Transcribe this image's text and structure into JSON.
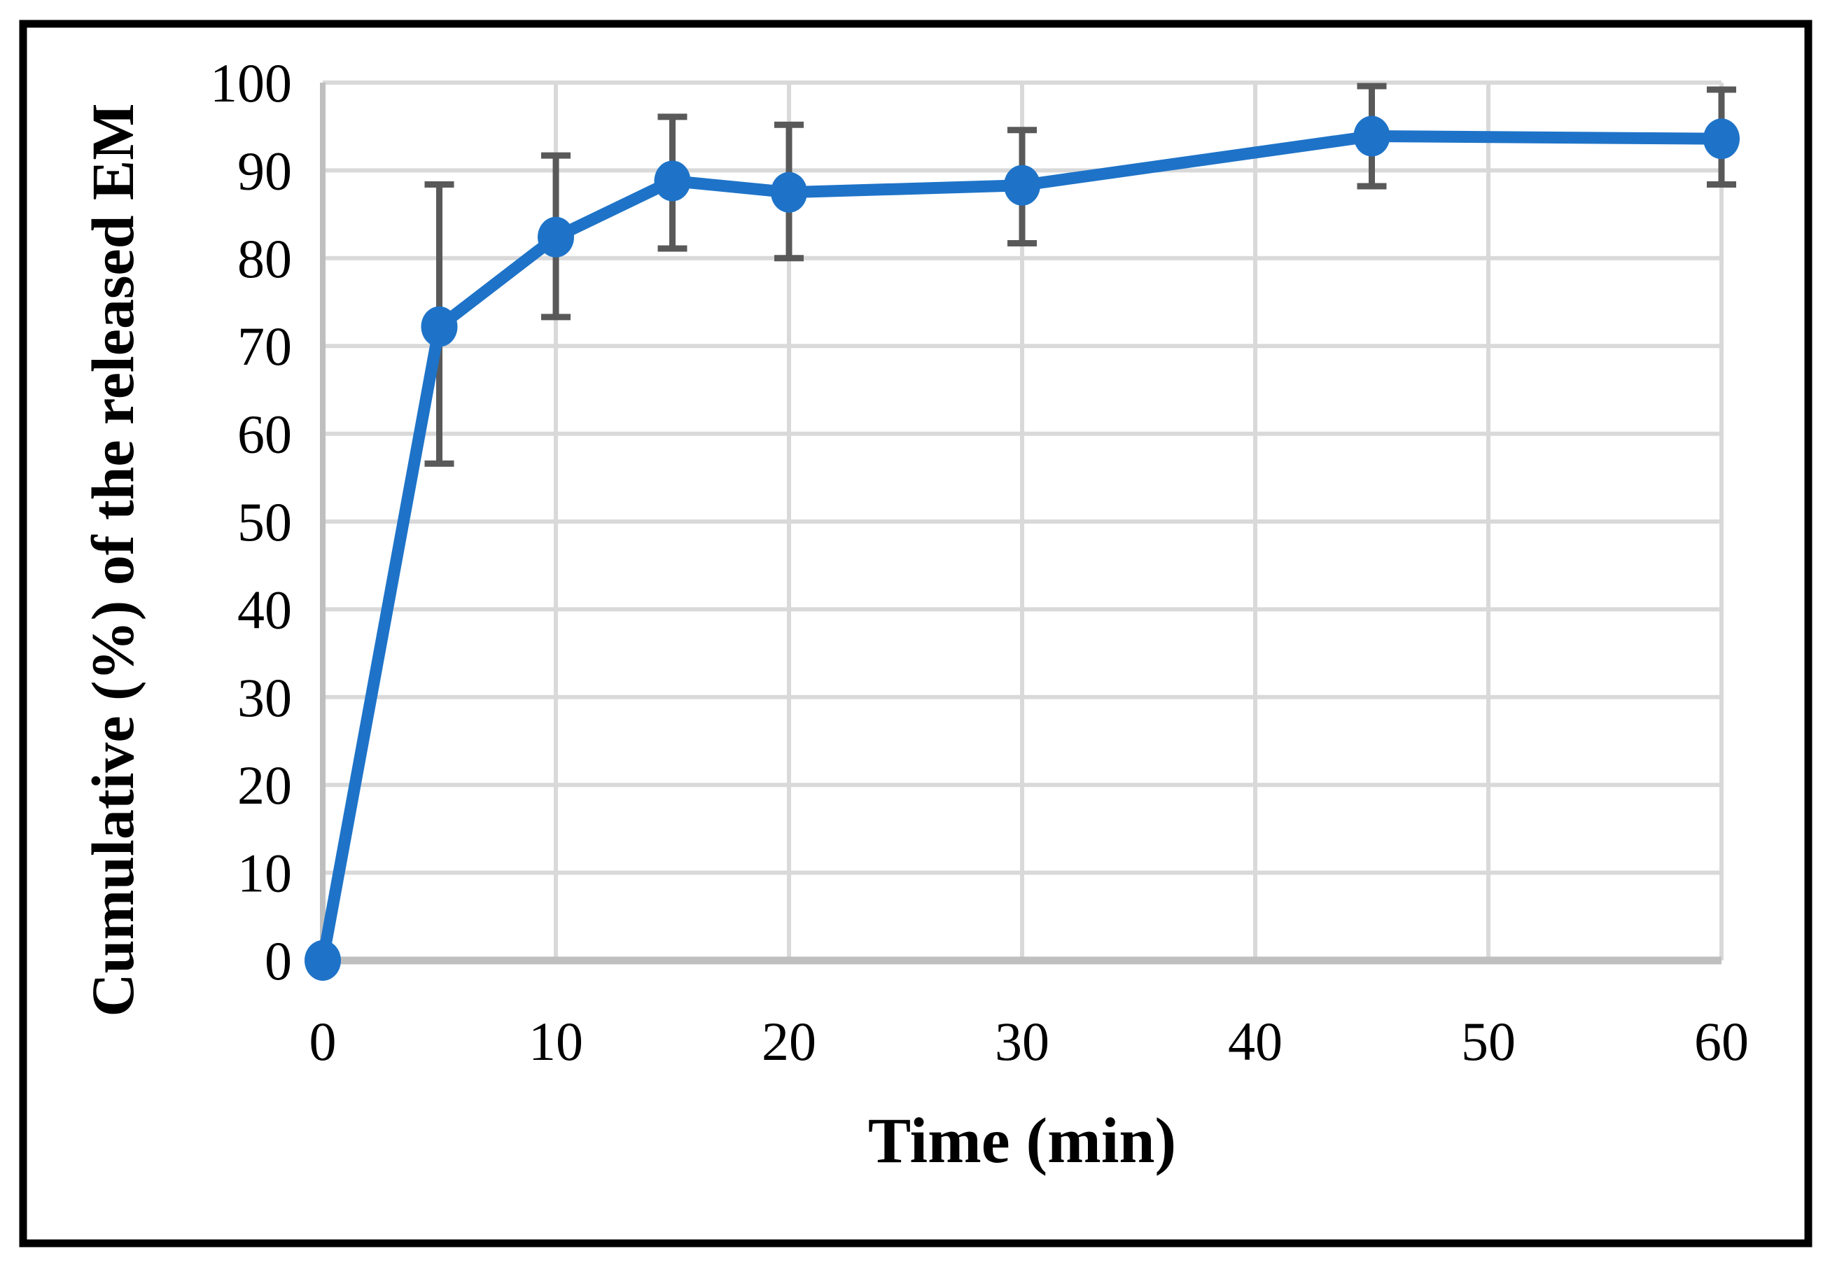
{
  "figure": {
    "background": "#ffffff",
    "border_color": "#000000"
  },
  "chart_data": {
    "type": "line",
    "title": "",
    "xlabel": "Time (min)",
    "ylabel": "Cumulative (%) of the released EM",
    "x": [
      0,
      5,
      10,
      15,
      20,
      30,
      45,
      60
    ],
    "series": [
      {
        "name": "Cumulative (%) of the released EM",
        "values": [
          0,
          72.2,
          82.4,
          88.8,
          87.5,
          88.3,
          93.9,
          93.6
        ],
        "error_low": [
          null,
          56.6,
          73.3,
          81.1,
          80.0,
          81.7,
          88.2,
          88.4
        ],
        "error_high": [
          null,
          88.4,
          91.7,
          96.1,
          95.2,
          94.6,
          99.6,
          99.2
        ],
        "color": "#1E73C8",
        "marker": "circle"
      }
    ],
    "xlim": [
      0,
      60
    ],
    "ylim": [
      0,
      100
    ],
    "x_ticks": [
      0,
      10,
      20,
      30,
      40,
      50,
      60
    ],
    "y_ticks": [
      0,
      10,
      20,
      30,
      40,
      50,
      60,
      70,
      80,
      90,
      100
    ],
    "grid": true,
    "legend": false,
    "gridline_color": "#D9D9D9",
    "axis_line_color": "#BFBFBF",
    "error_bar_color": "#595959"
  }
}
